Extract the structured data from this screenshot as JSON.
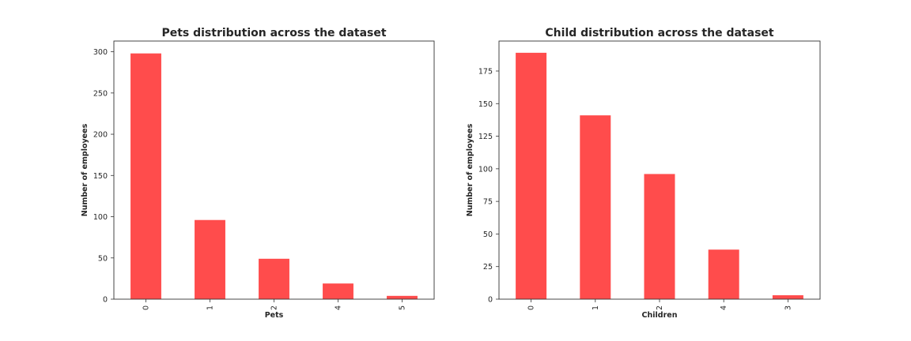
{
  "chart_data": [
    {
      "type": "bar",
      "title": "Pets distribution across the dataset",
      "xlabel": "Pets",
      "ylabel": "Number of employees",
      "categories": [
        "0",
        "1",
        "2",
        "4",
        "5"
      ],
      "values": [
        298,
        96,
        49,
        19,
        4
      ],
      "yticks": [
        "0",
        "50",
        "100",
        "150",
        "200",
        "250",
        "300"
      ],
      "ylim": [
        0,
        313
      ],
      "grid": false,
      "bar_color": "#ff4c4c"
    },
    {
      "type": "bar",
      "title": "Child distribution across the dataset",
      "xlabel": "Children",
      "ylabel": "Number of employees",
      "categories": [
        "0",
        "1",
        "2",
        "4",
        "3"
      ],
      "values": [
        189,
        141,
        96,
        38,
        3
      ],
      "yticks": [
        "0",
        "25",
        "50",
        "75",
        "100",
        "125",
        "150",
        "175"
      ],
      "ylim": [
        0,
        198
      ],
      "grid": false,
      "bar_color": "#ff4c4c"
    }
  ]
}
